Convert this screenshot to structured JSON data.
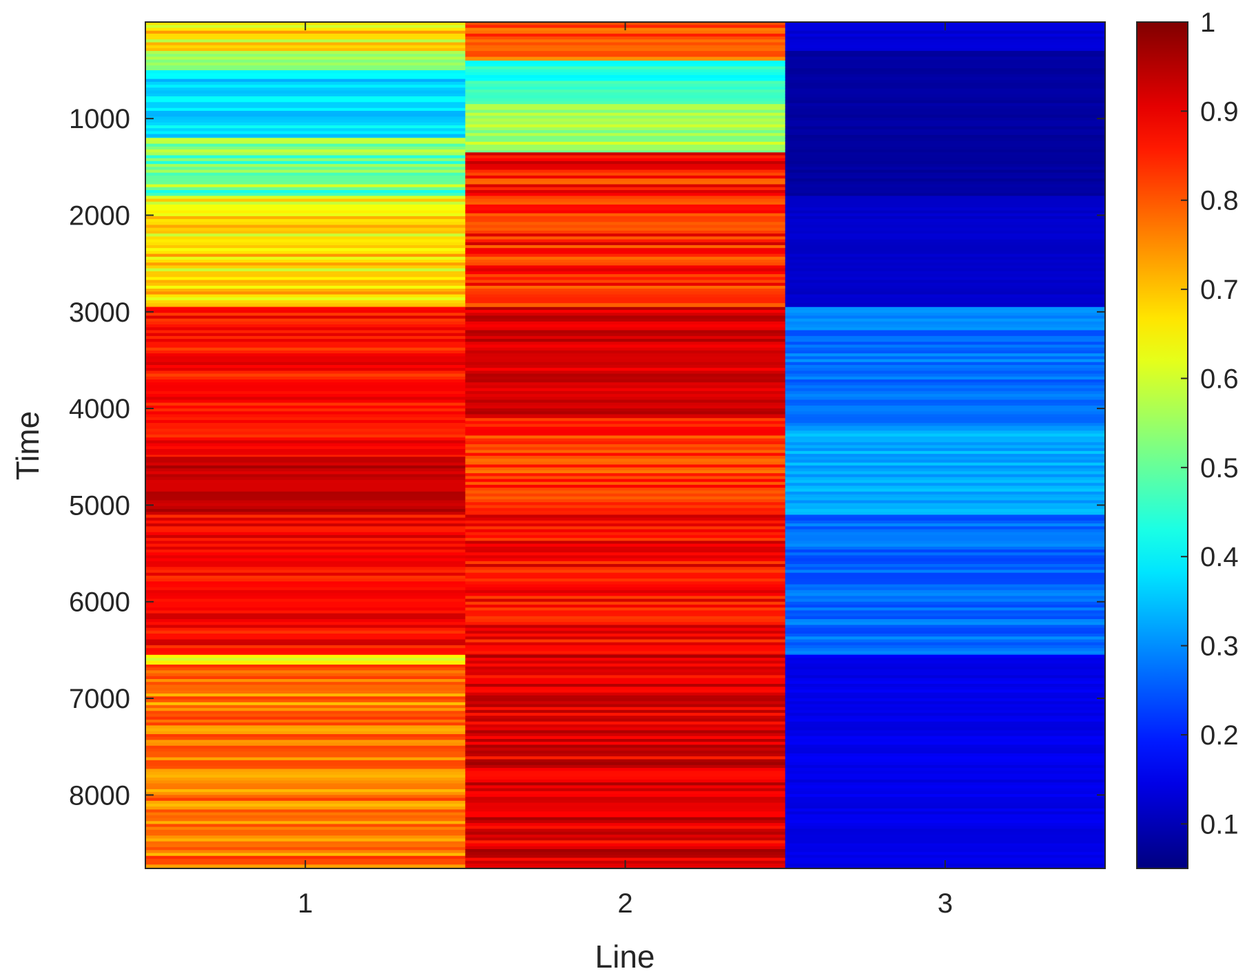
{
  "chart_data": {
    "type": "heatmap",
    "title": "",
    "xlabel": "Line",
    "ylabel": "Time",
    "x_categories": [
      "1",
      "2",
      "3"
    ],
    "y_range": [
      1,
      8760
    ],
    "y_ticks": [
      1000,
      2000,
      3000,
      4000,
      5000,
      6000,
      7000,
      8000
    ],
    "y_direction": "reverse",
    "colorbar": {
      "colormap": "jet",
      "range": [
        0.05,
        1
      ],
      "ticks": [
        "0.1",
        "0.2",
        "0.3",
        "0.4",
        "0.5",
        "0.6",
        "0.7",
        "0.8",
        "0.9",
        "1"
      ]
    },
    "segments": [
      {
        "line": "1",
        "from": 1,
        "to": 300,
        "mean": 0.64,
        "spread": 0.1
      },
      {
        "line": "1",
        "from": 300,
        "to": 500,
        "mean": 0.55,
        "spread": 0.04
      },
      {
        "line": "1",
        "from": 500,
        "to": 1200,
        "mean": 0.37,
        "spread": 0.05
      },
      {
        "line": "1",
        "from": 1200,
        "to": 1800,
        "mean": 0.52,
        "spread": 0.1
      },
      {
        "line": "1",
        "from": 1800,
        "to": 2950,
        "mean": 0.67,
        "spread": 0.08
      },
      {
        "line": "1",
        "from": 2950,
        "to": 4500,
        "mean": 0.87,
        "spread": 0.05
      },
      {
        "line": "1",
        "from": 4500,
        "to": 5100,
        "mean": 0.94,
        "spread": 0.03
      },
      {
        "line": "1",
        "from": 5100,
        "to": 6550,
        "mean": 0.88,
        "spread": 0.05
      },
      {
        "line": "1",
        "from": 6550,
        "to": 6650,
        "mean": 0.62,
        "spread": 0.04
      },
      {
        "line": "1",
        "from": 6650,
        "to": 8760,
        "mean": 0.77,
        "spread": 0.07
      },
      {
        "line": "2",
        "from": 1,
        "to": 400,
        "mean": 0.78,
        "spread": 0.08
      },
      {
        "line": "2",
        "from": 400,
        "to": 850,
        "mean": 0.44,
        "spread": 0.04
      },
      {
        "line": "2",
        "from": 850,
        "to": 1350,
        "mean": 0.56,
        "spread": 0.05
      },
      {
        "line": "2",
        "from": 1350,
        "to": 2950,
        "mean": 0.86,
        "spread": 0.08
      },
      {
        "line": "2",
        "from": 2950,
        "to": 4100,
        "mean": 0.92,
        "spread": 0.04
      },
      {
        "line": "2",
        "from": 4100,
        "to": 5100,
        "mean": 0.83,
        "spread": 0.06
      },
      {
        "line": "2",
        "from": 5100,
        "to": 6550,
        "mean": 0.88,
        "spread": 0.06
      },
      {
        "line": "2",
        "from": 6550,
        "to": 8760,
        "mean": 0.91,
        "spread": 0.06
      },
      {
        "line": "3",
        "from": 1,
        "to": 300,
        "mean": 0.13,
        "spread": 0.01
      },
      {
        "line": "3",
        "from": 300,
        "to": 1800,
        "mean": 0.08,
        "spread": 0.01
      },
      {
        "line": "3",
        "from": 1800,
        "to": 2950,
        "mean": 0.12,
        "spread": 0.01
      },
      {
        "line": "3",
        "from": 2950,
        "to": 4200,
        "mean": 0.28,
        "spread": 0.04
      },
      {
        "line": "3",
        "from": 4200,
        "to": 5100,
        "mean": 0.33,
        "spread": 0.03
      },
      {
        "line": "3",
        "from": 5100,
        "to": 6550,
        "mean": 0.27,
        "spread": 0.04
      },
      {
        "line": "3",
        "from": 6550,
        "to": 8760,
        "mean": 0.15,
        "spread": 0.015
      }
    ]
  }
}
